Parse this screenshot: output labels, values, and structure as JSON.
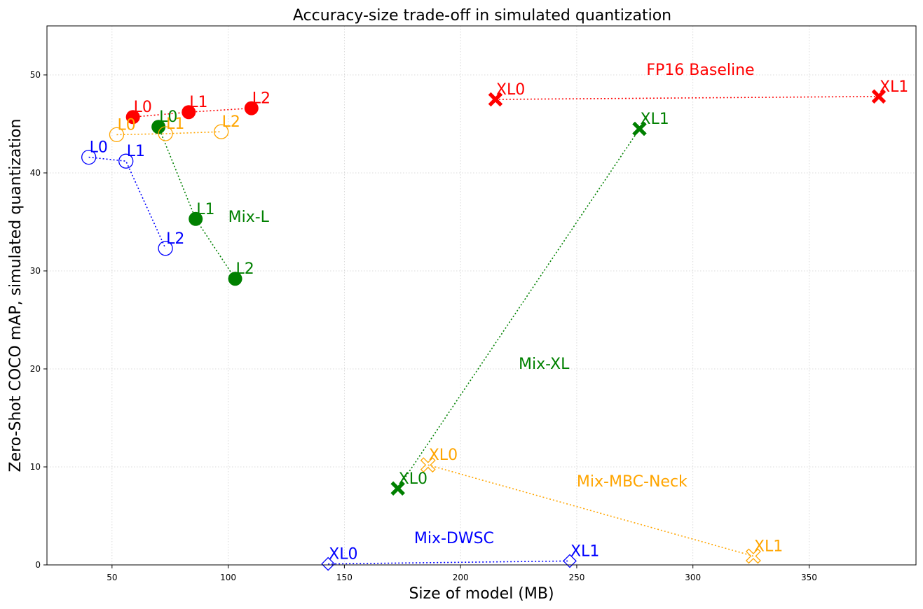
{
  "chart_data": {
    "type": "scatter",
    "title": "Accuracy-size trade-off in simulated quantization",
    "xlabel": "Size of model (MB)",
    "ylabel": "Zero-Shot COCO mAP, simulated quantization",
    "xlim": [
      22,
      396
    ],
    "ylim": [
      0,
      55
    ],
    "xticks": [
      50,
      100,
      150,
      200,
      250,
      300,
      350
    ],
    "yticks": [
      0,
      10,
      20,
      30,
      40,
      50
    ],
    "grid": true,
    "line_style": "dotted",
    "series": [
      {
        "name": "FP16 Baseline",
        "color": "#ff0000",
        "groups": [
          {
            "marker": "circle-filled",
            "points": [
              {
                "label": "L0",
                "x": 59,
                "y": 45.7
              },
              {
                "label": "L1",
                "x": 83,
                "y": 46.2
              },
              {
                "label": "L2",
                "x": 110,
                "y": 46.6
              }
            ]
          },
          {
            "marker": "x-filled",
            "points": [
              {
                "label": "XL0",
                "x": 215,
                "y": 47.5
              },
              {
                "label": "XL1",
                "x": 380,
                "y": 47.8
              }
            ]
          }
        ]
      },
      {
        "name": "Mix-L",
        "color": "#008000",
        "groups": [
          {
            "marker": "circle-filled",
            "points": [
              {
                "label": "L0",
                "x": 70,
                "y": 44.7
              },
              {
                "label": "L1",
                "x": 86,
                "y": 35.3
              },
              {
                "label": "L2",
                "x": 103,
                "y": 29.2
              }
            ]
          }
        ]
      },
      {
        "name": "Mix-XL",
        "color": "#008000",
        "groups": [
          {
            "marker": "x-filled",
            "points": [
              {
                "label": "XL0",
                "x": 173,
                "y": 7.8
              },
              {
                "label": "XL1",
                "x": 277,
                "y": 44.5
              }
            ]
          }
        ]
      },
      {
        "name": "Mix-MBC-Neck",
        "color": "#ffa500",
        "groups": [
          {
            "marker": "circle-open",
            "points": [
              {
                "label": "L0",
                "x": 52,
                "y": 43.9
              },
              {
                "label": "L1",
                "x": 73,
                "y": 44.0
              },
              {
                "label": "L2",
                "x": 97,
                "y": 44.2
              }
            ]
          },
          {
            "marker": "x-open",
            "points": [
              {
                "label": "XL0",
                "x": 186,
                "y": 10.2
              },
              {
                "label": "XL1",
                "x": 326,
                "y": 0.9
              }
            ]
          }
        ]
      },
      {
        "name": "Mix-DWSC",
        "color": "#0000ff",
        "groups": [
          {
            "marker": "circle-open",
            "points": [
              {
                "label": "L0",
                "x": 40,
                "y": 41.6
              },
              {
                "label": "L1",
                "x": 56,
                "y": 41.2
              },
              {
                "label": "L2",
                "x": 73,
                "y": 32.3
              }
            ]
          },
          {
            "marker": "diamond-open",
            "points": [
              {
                "label": "XL0",
                "x": 143,
                "y": 0.1
              },
              {
                "label": "XL1",
                "x": 247,
                "y": 0.4
              }
            ]
          }
        ]
      }
    ],
    "annotations": [
      {
        "text": "FP16 Baseline",
        "x": 280,
        "y": 50,
        "color": "#ff0000"
      },
      {
        "text": "Mix-L",
        "x": 100,
        "y": 35,
        "color": "#008000"
      },
      {
        "text": "Mix-XL",
        "x": 225,
        "y": 20,
        "color": "#008000"
      },
      {
        "text": "Mix-MBC-Neck",
        "x": 250,
        "y": 8,
        "color": "#ffa500"
      },
      {
        "text": "Mix-DWSC",
        "x": 180,
        "y": 2.2,
        "color": "#0000ff"
      }
    ]
  }
}
